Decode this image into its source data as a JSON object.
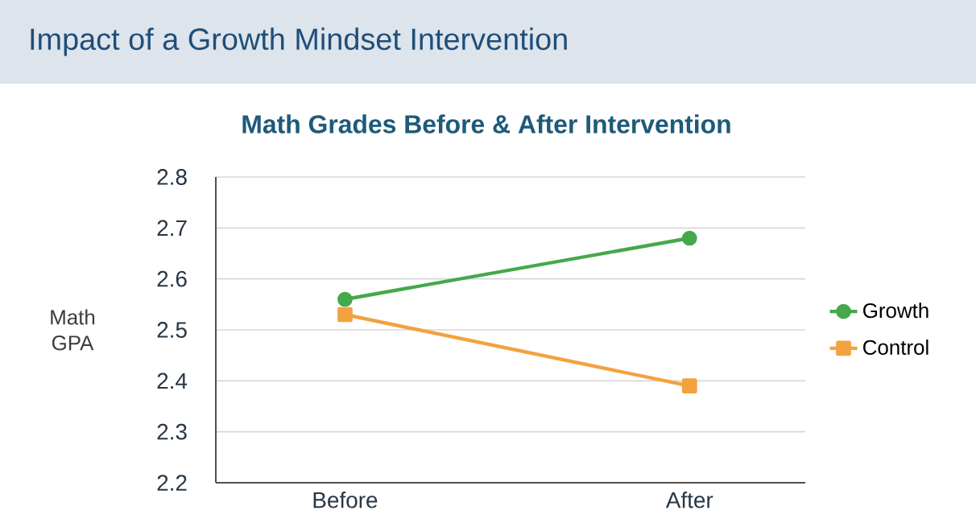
{
  "chart_data": {
    "type": "line",
    "title": "Impact of a Growth Mindset Intervention",
    "subtitle": "Math Grades Before & After Intervention",
    "ylabel": "Math GPA",
    "categories": [
      "Before",
      "After"
    ],
    "series": [
      {
        "name": "Growth",
        "color": "#45a84b",
        "marker": "circle",
        "values": [
          2.56,
          2.68
        ]
      },
      {
        "name": "Control",
        "color": "#f2a240",
        "marker": "square",
        "values": [
          2.53,
          2.39
        ]
      }
    ],
    "ylim": [
      2.2,
      2.8
    ],
    "yticks": [
      2.2,
      2.3,
      2.4,
      2.5,
      2.6,
      2.7,
      2.8
    ],
    "grid": "y",
    "legend": "right",
    "line_style": "solid"
  }
}
